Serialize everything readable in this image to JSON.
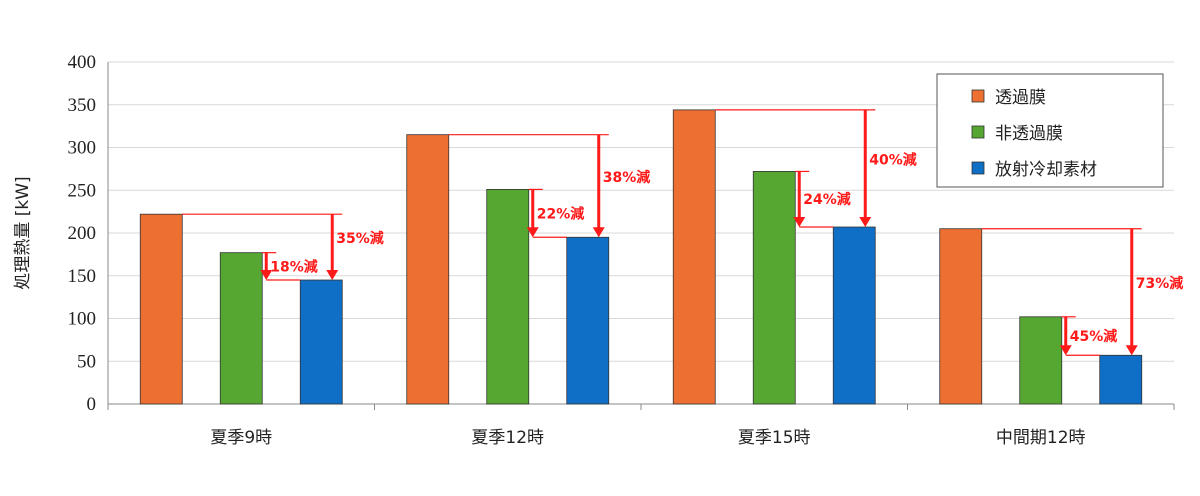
{
  "chart_data": {
    "type": "bar",
    "title": "",
    "xlabel": "",
    "ylabel": "処理熱量 [kW]",
    "ylim": [
      0,
      400
    ],
    "yticks": [
      0,
      50,
      100,
      150,
      200,
      250,
      300,
      350,
      400
    ],
    "grid": true,
    "legend_position": "top-right",
    "categories": [
      "夏季9時",
      "夏季12時",
      "夏季15時",
      "中間期12時"
    ],
    "series": [
      {
        "name": "透過膜",
        "color": "#ed7032",
        "values": [
          222,
          315,
          344,
          205
        ]
      },
      {
        "name": "非透過膜",
        "color": "#55a732",
        "values": [
          177,
          251,
          272,
          102
        ]
      },
      {
        "name": "放射冷却素材",
        "color": "#0f6fc6",
        "values": [
          145,
          195,
          207,
          57
        ]
      }
    ],
    "annotations": [
      {
        "category": 0,
        "from": "非透過膜",
        "to": "放射冷却素材",
        "label": "18%減"
      },
      {
        "category": 0,
        "from": "透過膜",
        "to": "放射冷却素材",
        "label": "35%減"
      },
      {
        "category": 1,
        "from": "非透過膜",
        "to": "放射冷却素材",
        "label": "22%減"
      },
      {
        "category": 1,
        "from": "透過膜",
        "to": "放射冷却素材",
        "label": "38%減"
      },
      {
        "category": 2,
        "from": "非透過膜",
        "to": "放射冷却素材",
        "label": "24%減"
      },
      {
        "category": 2,
        "from": "透過膜",
        "to": "放射冷却素材",
        "label": "40%減"
      },
      {
        "category": 3,
        "from": "非透過膜",
        "to": "放射冷却素材",
        "label": "45%減"
      },
      {
        "category": 3,
        "from": "透過膜",
        "to": "放射冷却素材",
        "label": "73%減"
      }
    ],
    "annotation_color": "#ff1a1a"
  }
}
